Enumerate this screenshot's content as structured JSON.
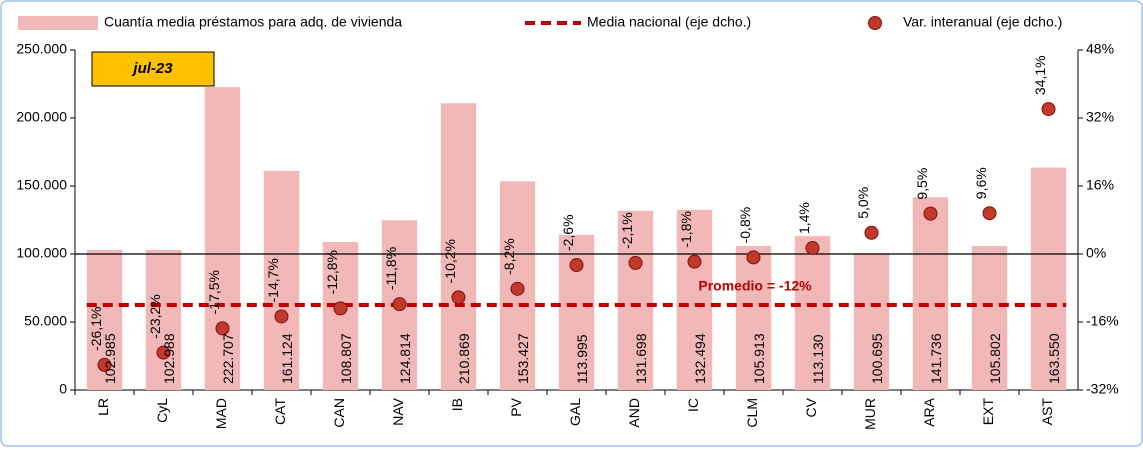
{
  "chart_data": {
    "type": "combo",
    "annotations": [
      "jul-23",
      "Promedio = -12%"
    ],
    "categories": [
      "LR",
      "CyL",
      "MAD",
      "CAT",
      "CAN",
      "NAV",
      "IB",
      "PV",
      "GAL",
      "AND",
      "IC",
      "CLM",
      "CV",
      "MUR",
      "ARA",
      "EXT",
      "AST"
    ],
    "series": [
      {
        "name": "Cuantía media préstamos para adq. de vivienda",
        "type": "bar",
        "color": "#f2b8b8",
        "values": [
          102985,
          102988,
          222707,
          161124,
          108807,
          124814,
          210869,
          153427,
          113995,
          131698,
          132494,
          105913,
          113130,
          100695,
          141736,
          105802,
          163550
        ],
        "value_labels": [
          "102.985",
          "102.988",
          "222.707",
          "161.124",
          "108.807",
          "124.814",
          "210.869",
          "153.427",
          "113.995",
          "131.698",
          "132.494",
          "105.913",
          "113.130",
          "100.695",
          "141.736",
          "105.802",
          "163.550"
        ]
      },
      {
        "name": "Media nacional (eje dcho.)",
        "type": "line",
        "axis": "y2",
        "color": "#c00000",
        "values": [
          -12,
          -12,
          -12,
          -12,
          -12,
          -12,
          -12,
          -12,
          -12,
          -12,
          -12,
          -12,
          -12,
          -12,
          -12,
          -12,
          -12
        ]
      },
      {
        "name": "Var. interanual (eje dcho.)",
        "type": "scatter",
        "axis": "y2",
        "color": "#c0392b",
        "values": [
          -26.1,
          -23.2,
          -17.5,
          -14.7,
          -12.8,
          -11.8,
          -10.2,
          -8.2,
          -2.6,
          -2.1,
          -1.8,
          -0.8,
          1.4,
          5.0,
          9.5,
          9.6,
          34.1
        ],
        "value_labels": [
          "-26,1%",
          "-23,2%",
          "-17,5%",
          "-14,7%",
          "-12,8%",
          "-11,8%",
          "-10,2%",
          "-8,2%",
          "-2,6%",
          "-2,1%",
          "-1,8%",
          "-0,8%",
          "1,4%",
          "5,0%",
          "9,5%",
          "9,6%",
          "34,1%"
        ]
      }
    ],
    "ylim": [
      0,
      250000
    ],
    "yticks": [
      0,
      {
        "value": 50000,
        "label": "50.000"
      },
      {
        "value": 100000,
        "label": "100.000"
      },
      {
        "value": 150000,
        "label": "150.000"
      },
      {
        "value": 200000,
        "label": "200.000"
      },
      {
        "value": 250000,
        "label": "250.000"
      }
    ],
    "y2lim": [
      -32,
      48
    ],
    "y2ticks": [
      {
        "value": -32,
        "label": "-32%"
      },
      {
        "value": -16,
        "label": "-16%"
      },
      {
        "value": 0,
        "label": "0%"
      },
      {
        "value": 16,
        "label": "16%"
      },
      {
        "value": 32,
        "label": "32%"
      },
      {
        "value": 48,
        "label": "48%"
      }
    ]
  }
}
